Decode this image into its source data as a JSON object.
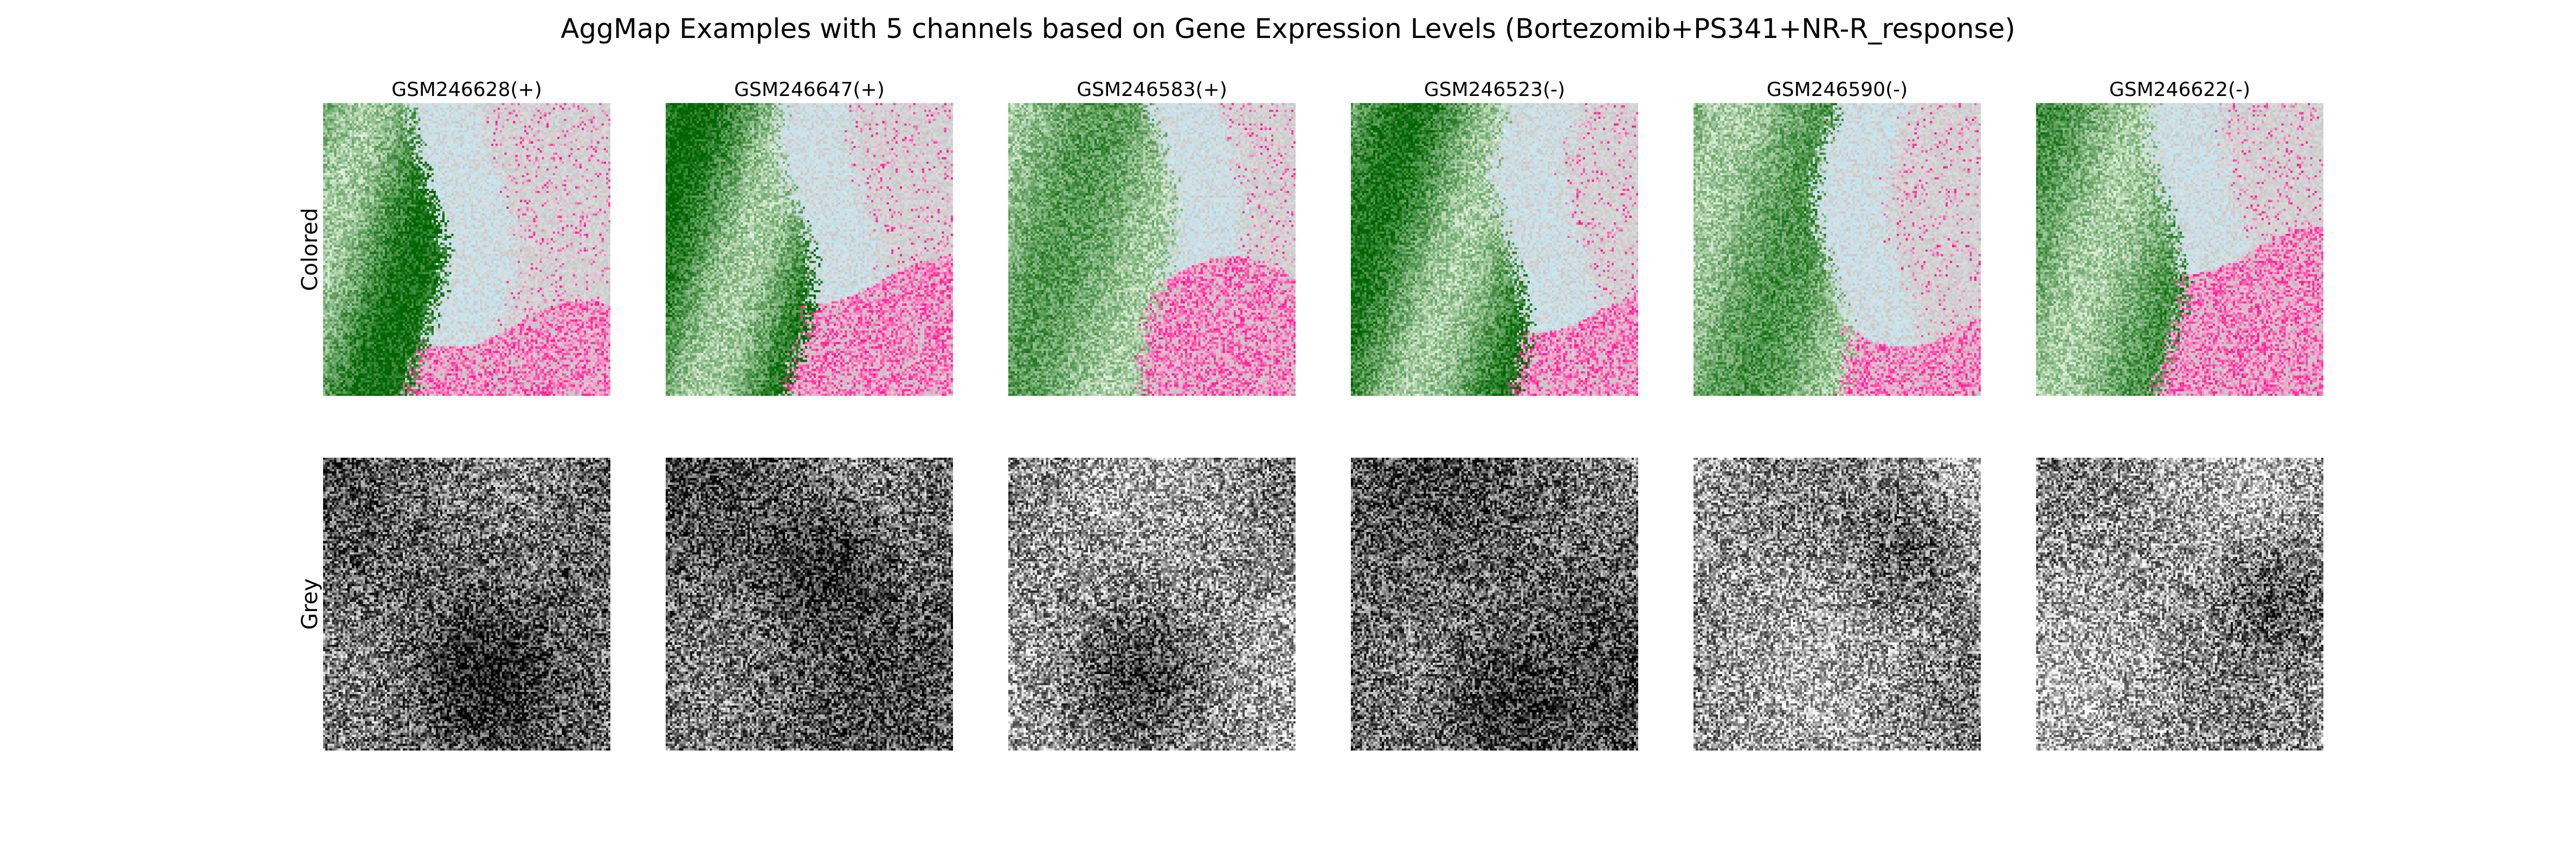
{
  "chart_data": {
    "type": "heatmap",
    "title": "AggMap Examples with 5 channels based on Gene Expression Levels (Bortezomib+PS341+NR-R_response)",
    "rows": [
      {
        "label": "Colored",
        "mode": "colored"
      },
      {
        "label": "Grey",
        "mode": "grey"
      }
    ],
    "samples": [
      {
        "label": "GSM246628(+)",
        "seed": 11,
        "boundary": 0.36,
        "green_depth": 0.85,
        "pink_bottom": 0.75,
        "grey_level": 0.4,
        "dark_blob": [
          0.55,
          0.75
        ]
      },
      {
        "label": "GSM246647(+)",
        "seed": 23,
        "boundary": 0.45,
        "green_depth": 0.9,
        "pink_bottom": 0.6,
        "grey_level": 0.38,
        "dark_blob": [
          0.55,
          0.35
        ]
      },
      {
        "label": "GSM246583(+)",
        "seed": 37,
        "boundary": 0.52,
        "green_depth": 0.45,
        "pink_bottom": 0.6,
        "grey_level": 0.58,
        "dark_blob": [
          0.45,
          0.72
        ]
      },
      {
        "label": "GSM246523(-)",
        "seed": 41,
        "boundary": 0.55,
        "green_depth": 0.8,
        "pink_bottom": 0.7,
        "grey_level": 0.38,
        "dark_blob": [
          0.5,
          0.85
        ]
      },
      {
        "label": "GSM246590(-)",
        "seed": 53,
        "boundary": 0.48,
        "green_depth": 0.5,
        "pink_bottom": 0.75,
        "grey_level": 0.6,
        "dark_blob": [
          0.75,
          0.3
        ]
      },
      {
        "label": "GSM246622(-)",
        "seed": 67,
        "boundary": 0.45,
        "green_depth": 0.55,
        "pink_bottom": 0.5,
        "grey_level": 0.62,
        "dark_blob": [
          0.85,
          0.45
        ]
      }
    ],
    "palette": {
      "green_dark": "#006400",
      "green_light": "#e8f5e3",
      "light_blue": "#bfe0ea",
      "grey": "#c8c8c8",
      "pink": "#ff1493",
      "pink_light": "#f7c6dc"
    },
    "grid": false,
    "axes_visible": false
  }
}
